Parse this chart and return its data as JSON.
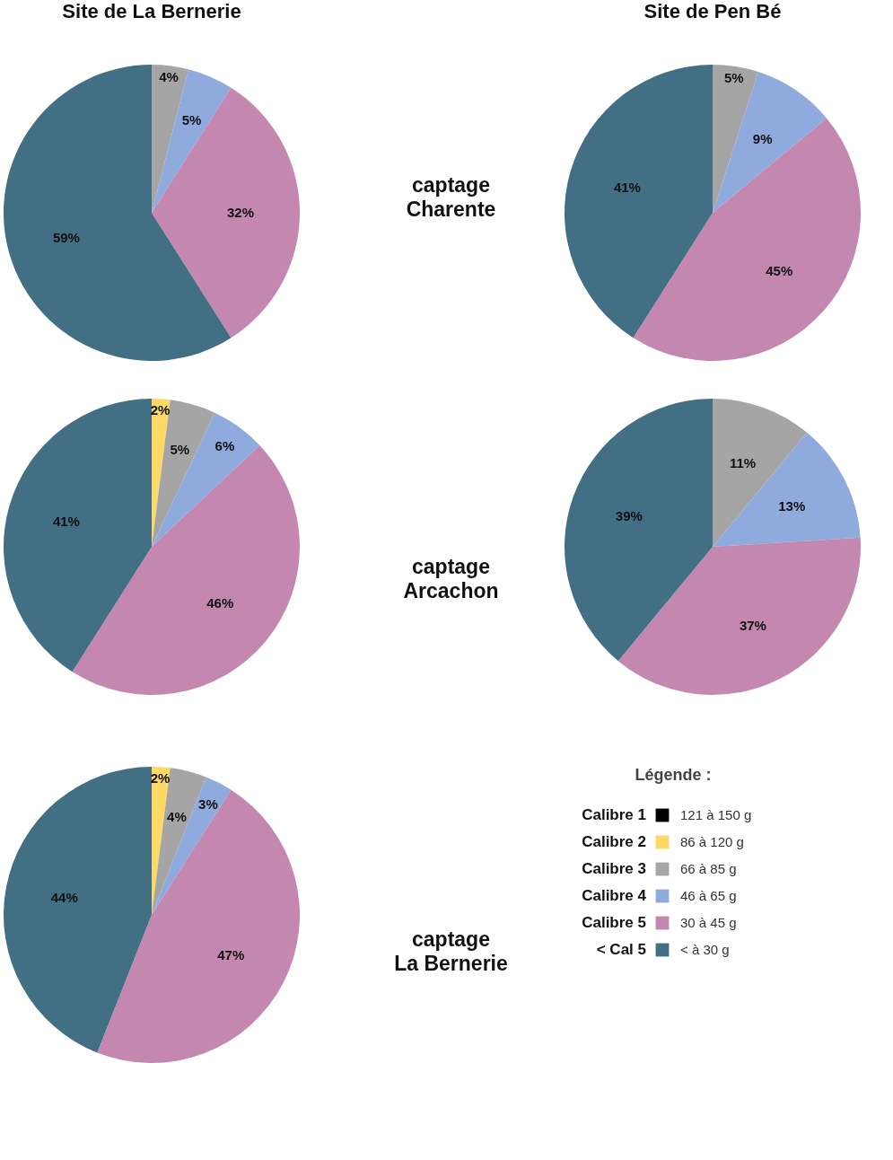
{
  "chart_data": [
    {
      "type": "pie",
      "title": "Site de La Bernerie",
      "annotations": [
        "captage\nCharente"
      ],
      "categories": [
        null,
        null,
        null,
        null
      ],
      "values": [
        4,
        5,
        32,
        59
      ],
      "colors": [
        "#a5a5a5",
        "#8faadc",
        "#c387b0",
        "#426f84"
      ],
      "value_labels": [
        "4%",
        "5%",
        "32%",
        "59%"
      ]
    },
    {
      "type": "pie",
      "title": "Site de Pen Bé",
      "categories": [
        null,
        null,
        null,
        null
      ],
      "values": [
        5,
        9,
        45,
        41
      ],
      "colors": [
        "#a5a5a5",
        "#8faadc",
        "#c387b0",
        "#426f84"
      ],
      "value_labels": [
        "5%",
        "9%",
        "45%",
        "41%"
      ]
    },
    {
      "type": "pie",
      "annotations": [
        "captage\nArcachon"
      ],
      "categories": [
        null,
        null,
        null,
        null,
        null
      ],
      "values": [
        2,
        5,
        6,
        46,
        41
      ],
      "colors": [
        "#ffd966",
        "#a5a5a5",
        "#8faadc",
        "#c387b0",
        "#426f84"
      ],
      "value_labels": [
        "2%",
        "5%",
        "6%",
        "46%",
        "41%"
      ]
    },
    {
      "type": "pie",
      "categories": [
        null,
        null,
        null,
        null
      ],
      "values": [
        11,
        13,
        37,
        39
      ],
      "colors": [
        "#a5a5a5",
        "#8faadc",
        "#c387b0",
        "#426f84"
      ],
      "value_labels": [
        "11%",
        "13%",
        "37%",
        "39%"
      ]
    },
    {
      "type": "pie",
      "annotations": [
        "captage\nLa Bernerie"
      ],
      "categories": [
        null,
        null,
        null,
        null,
        null
      ],
      "values": [
        2,
        4,
        3,
        47,
        44
      ],
      "colors": [
        "#ffd966",
        "#a5a5a5",
        "#8faadc",
        "#c387b0",
        "#426f84"
      ],
      "value_labels": [
        "2%",
        "4%",
        "3%",
        "47%",
        "44%"
      ]
    },
    {
      "type": "other",
      "legend_title": "Légende :",
      "categories": [
        "Calibre 1",
        "Calibre 2",
        "Calibre 3",
        "Calibre 4",
        "Calibre 5",
        "< Cal 5"
      ],
      "colors": [
        "#000000",
        "#ffd966",
        "#a5a5a5",
        "#8faadc",
        "#c387b0",
        "#426f84"
      ],
      "annotations": [
        "121 à 150 g",
        "86 à 120 g",
        "66 à 85 g",
        "46 à 65 g",
        "30 à 45 g",
        "< à 30 g"
      ]
    }
  ]
}
